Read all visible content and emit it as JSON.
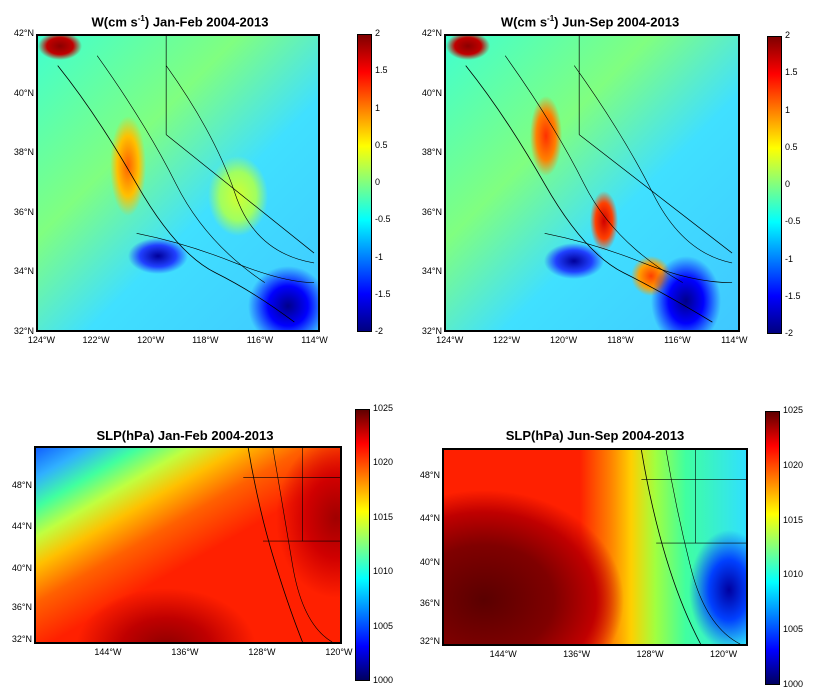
{
  "chart_data": [
    {
      "type": "heatmap",
      "title": "W(cm s⁻¹) Jan-Feb 2004-2013",
      "title_parts": {
        "pre": "W(cm s",
        "sup": "-1",
        "post": ") Jan-Feb 2004-2013"
      },
      "xticks": [
        "124°W",
        "122°W",
        "120°W",
        "118°W",
        "116°W",
        "114°W"
      ],
      "yticks": [
        "42°N",
        "40°N",
        "38°N",
        "36°N",
        "34°N",
        "32°N"
      ],
      "xlim": [
        -125,
        -114
      ],
      "ylim": [
        32,
        42
      ],
      "colorbar": {
        "ticks": [
          "2",
          "1.5",
          "1",
          "0.5",
          "0",
          "-0.5",
          "-1",
          "-1.5",
          "-2"
        ],
        "range": [
          -2,
          2
        ],
        "colormap": "jet"
      },
      "features": [
        {
          "location": "NW corner 42°N 124°W",
          "value": 2.0
        },
        {
          "location": "coastal band 38°N-35°N",
          "value": 0.6
        },
        {
          "location": "offshore Santa Barbara 34.5°N 120°W",
          "value": -1.5
        },
        {
          "location": "southern California 33°N 116°W",
          "value": -2.0
        },
        {
          "location": "open ocean",
          "value": -0.2
        }
      ]
    },
    {
      "type": "heatmap",
      "title": "W(cm s⁻¹) Jun-Sep 2004-2013",
      "title_parts": {
        "pre": "W(cm s",
        "sup": "-1",
        "post": ") Jun-Sep 2004-2013"
      },
      "xticks": [
        "124°W",
        "122°W",
        "120°W",
        "118°W",
        "116°W",
        "114°W"
      ],
      "yticks": [
        "42°N",
        "40°N",
        "38°N",
        "36°N",
        "34°N",
        "32°N"
      ],
      "xlim": [
        -125,
        -114
      ],
      "ylim": [
        32,
        42
      ],
      "colorbar": {
        "ticks": [
          "2",
          "1.5",
          "1",
          "0.5",
          "0",
          "-0.5",
          "-1",
          "-1.5",
          "-2"
        ],
        "range": [
          -2,
          2
        ],
        "colormap": "jet"
      },
      "features": [
        {
          "location": "NW corner 42°N 124°W",
          "value": 2.0
        },
        {
          "location": "coastal 38°N 122°W",
          "value": 1.4
        },
        {
          "location": "36°N 119°W",
          "value": 1.6
        },
        {
          "location": "offshore 34.5°N 120°W",
          "value": -1.7
        },
        {
          "location": "southern California 33°N 116°W",
          "value": -2.0
        },
        {
          "location": "open ocean",
          "value": -0.2
        }
      ]
    },
    {
      "type": "heatmap",
      "title": "SLP(hPa) Jan-Feb 2004-2013",
      "xticks": [
        "144°W",
        "136°W",
        "128°W",
        "120°W"
      ],
      "yticks": [
        "48°N",
        "44°N",
        "40°N",
        "36°N",
        "32°N"
      ],
      "colorbar": {
        "ticks": [
          "1025",
          "1020",
          "1015",
          "1010",
          "1005",
          "1000"
        ],
        "range": [
          1000,
          1025
        ],
        "colormap": "jet"
      },
      "features": [
        {
          "location": "NW corner",
          "value": 1008
        },
        {
          "location": "central North Pacific 32°N 136°W",
          "value": 1024
        },
        {
          "location": "interior 44°N 116°W",
          "value": 1024
        },
        {
          "location": "general",
          "value": 1020
        }
      ]
    },
    {
      "type": "heatmap",
      "title": "SLP(hPa) Jun-Sep 2004-2013",
      "xticks": [
        "144°W",
        "136°W",
        "128°W",
        "120°W"
      ],
      "yticks": [
        "48°N",
        "44°N",
        "40°N",
        "36°N",
        "32°N"
      ],
      "colorbar": {
        "ticks": [
          "1025",
          "1020",
          "1015",
          "1010",
          "1005",
          "1000"
        ],
        "range": [
          1000,
          1025
        ],
        "colormap": "jet"
      },
      "features": [
        {
          "location": "Pacific High 36°N 144°W",
          "value": 1025
        },
        {
          "location": "coast 40°N 124°W",
          "value": 1014
        },
        {
          "location": "interior low 35°N 116°W",
          "value": 1004
        },
        {
          "location": "northern interior 48°N 118°W",
          "value": 1012
        }
      ]
    }
  ]
}
